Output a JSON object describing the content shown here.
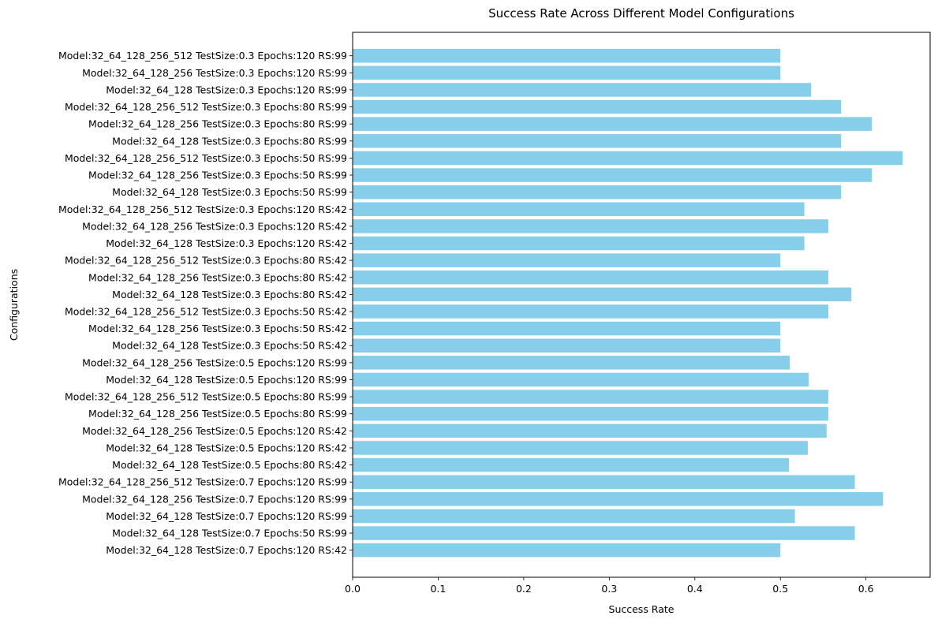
{
  "chart_data": {
    "type": "bar",
    "orientation": "horizontal",
    "title": "Success Rate Across Different Model Configurations",
    "xlabel": "Success Rate",
    "ylabel": "Configurations",
    "xlim": [
      0,
      0.675
    ],
    "xticks": [
      "0.0",
      "0.1",
      "0.2",
      "0.3",
      "0.4",
      "0.5",
      "0.6"
    ],
    "grid": false,
    "bar_color": "#87CEEB",
    "categories": [
      "Model:32_64_128_256_512 TestSize:0.3 Epochs:120 RS:99",
      "Model:32_64_128_256 TestSize:0.3 Epochs:120 RS:99",
      "Model:32_64_128 TestSize:0.3 Epochs:120 RS:99",
      "Model:32_64_128_256_512 TestSize:0.3 Epochs:80 RS:99",
      "Model:32_64_128_256 TestSize:0.3 Epochs:80 RS:99",
      "Model:32_64_128 TestSize:0.3 Epochs:80 RS:99",
      "Model:32_64_128_256_512 TestSize:0.3 Epochs:50 RS:99",
      "Model:32_64_128_256 TestSize:0.3 Epochs:50 RS:99",
      "Model:32_64_128 TestSize:0.3 Epochs:50 RS:99",
      "Model:32_64_128_256_512 TestSize:0.3 Epochs:120 RS:42",
      "Model:32_64_128_256 TestSize:0.3 Epochs:120 RS:42",
      "Model:32_64_128 TestSize:0.3 Epochs:120 RS:42",
      "Model:32_64_128_256_512 TestSize:0.3 Epochs:80 RS:42",
      "Model:32_64_128_256 TestSize:0.3 Epochs:80 RS:42",
      "Model:32_64_128 TestSize:0.3 Epochs:80 RS:42",
      "Model:32_64_128_256_512 TestSize:0.3 Epochs:50 RS:42",
      "Model:32_64_128_256 TestSize:0.3 Epochs:50 RS:42",
      "Model:32_64_128 TestSize:0.3 Epochs:50 RS:42",
      "Model:32_64_128_256 TestSize:0.5 Epochs:120 RS:99",
      "Model:32_64_128 TestSize:0.5 Epochs:120 RS:99",
      "Model:32_64_128_256_512 TestSize:0.5 Epochs:80 RS:99",
      "Model:32_64_128_256 TestSize:0.5 Epochs:80 RS:99",
      "Model:32_64_128_256 TestSize:0.5 Epochs:120 RS:42",
      "Model:32_64_128 TestSize:0.5 Epochs:120 RS:42",
      "Model:32_64_128 TestSize:0.5 Epochs:80 RS:42",
      "Model:32_64_128_256_512 TestSize:0.7 Epochs:120 RS:99",
      "Model:32_64_128_256 TestSize:0.7 Epochs:120 RS:99",
      "Model:32_64_128 TestSize:0.7 Epochs:120 RS:99",
      "Model:32_64_128 TestSize:0.7 Epochs:50 RS:99",
      "Model:32_64_128 TestSize:0.7 Epochs:120 RS:42"
    ],
    "values": [
      0.5,
      0.5,
      0.536,
      0.571,
      0.607,
      0.571,
      0.643,
      0.607,
      0.571,
      0.528,
      0.556,
      0.528,
      0.5,
      0.556,
      0.583,
      0.556,
      0.5,
      0.5,
      0.511,
      0.533,
      0.556,
      0.556,
      0.554,
      0.532,
      0.51,
      0.587,
      0.62,
      0.517,
      0.587,
      0.5
    ]
  }
}
